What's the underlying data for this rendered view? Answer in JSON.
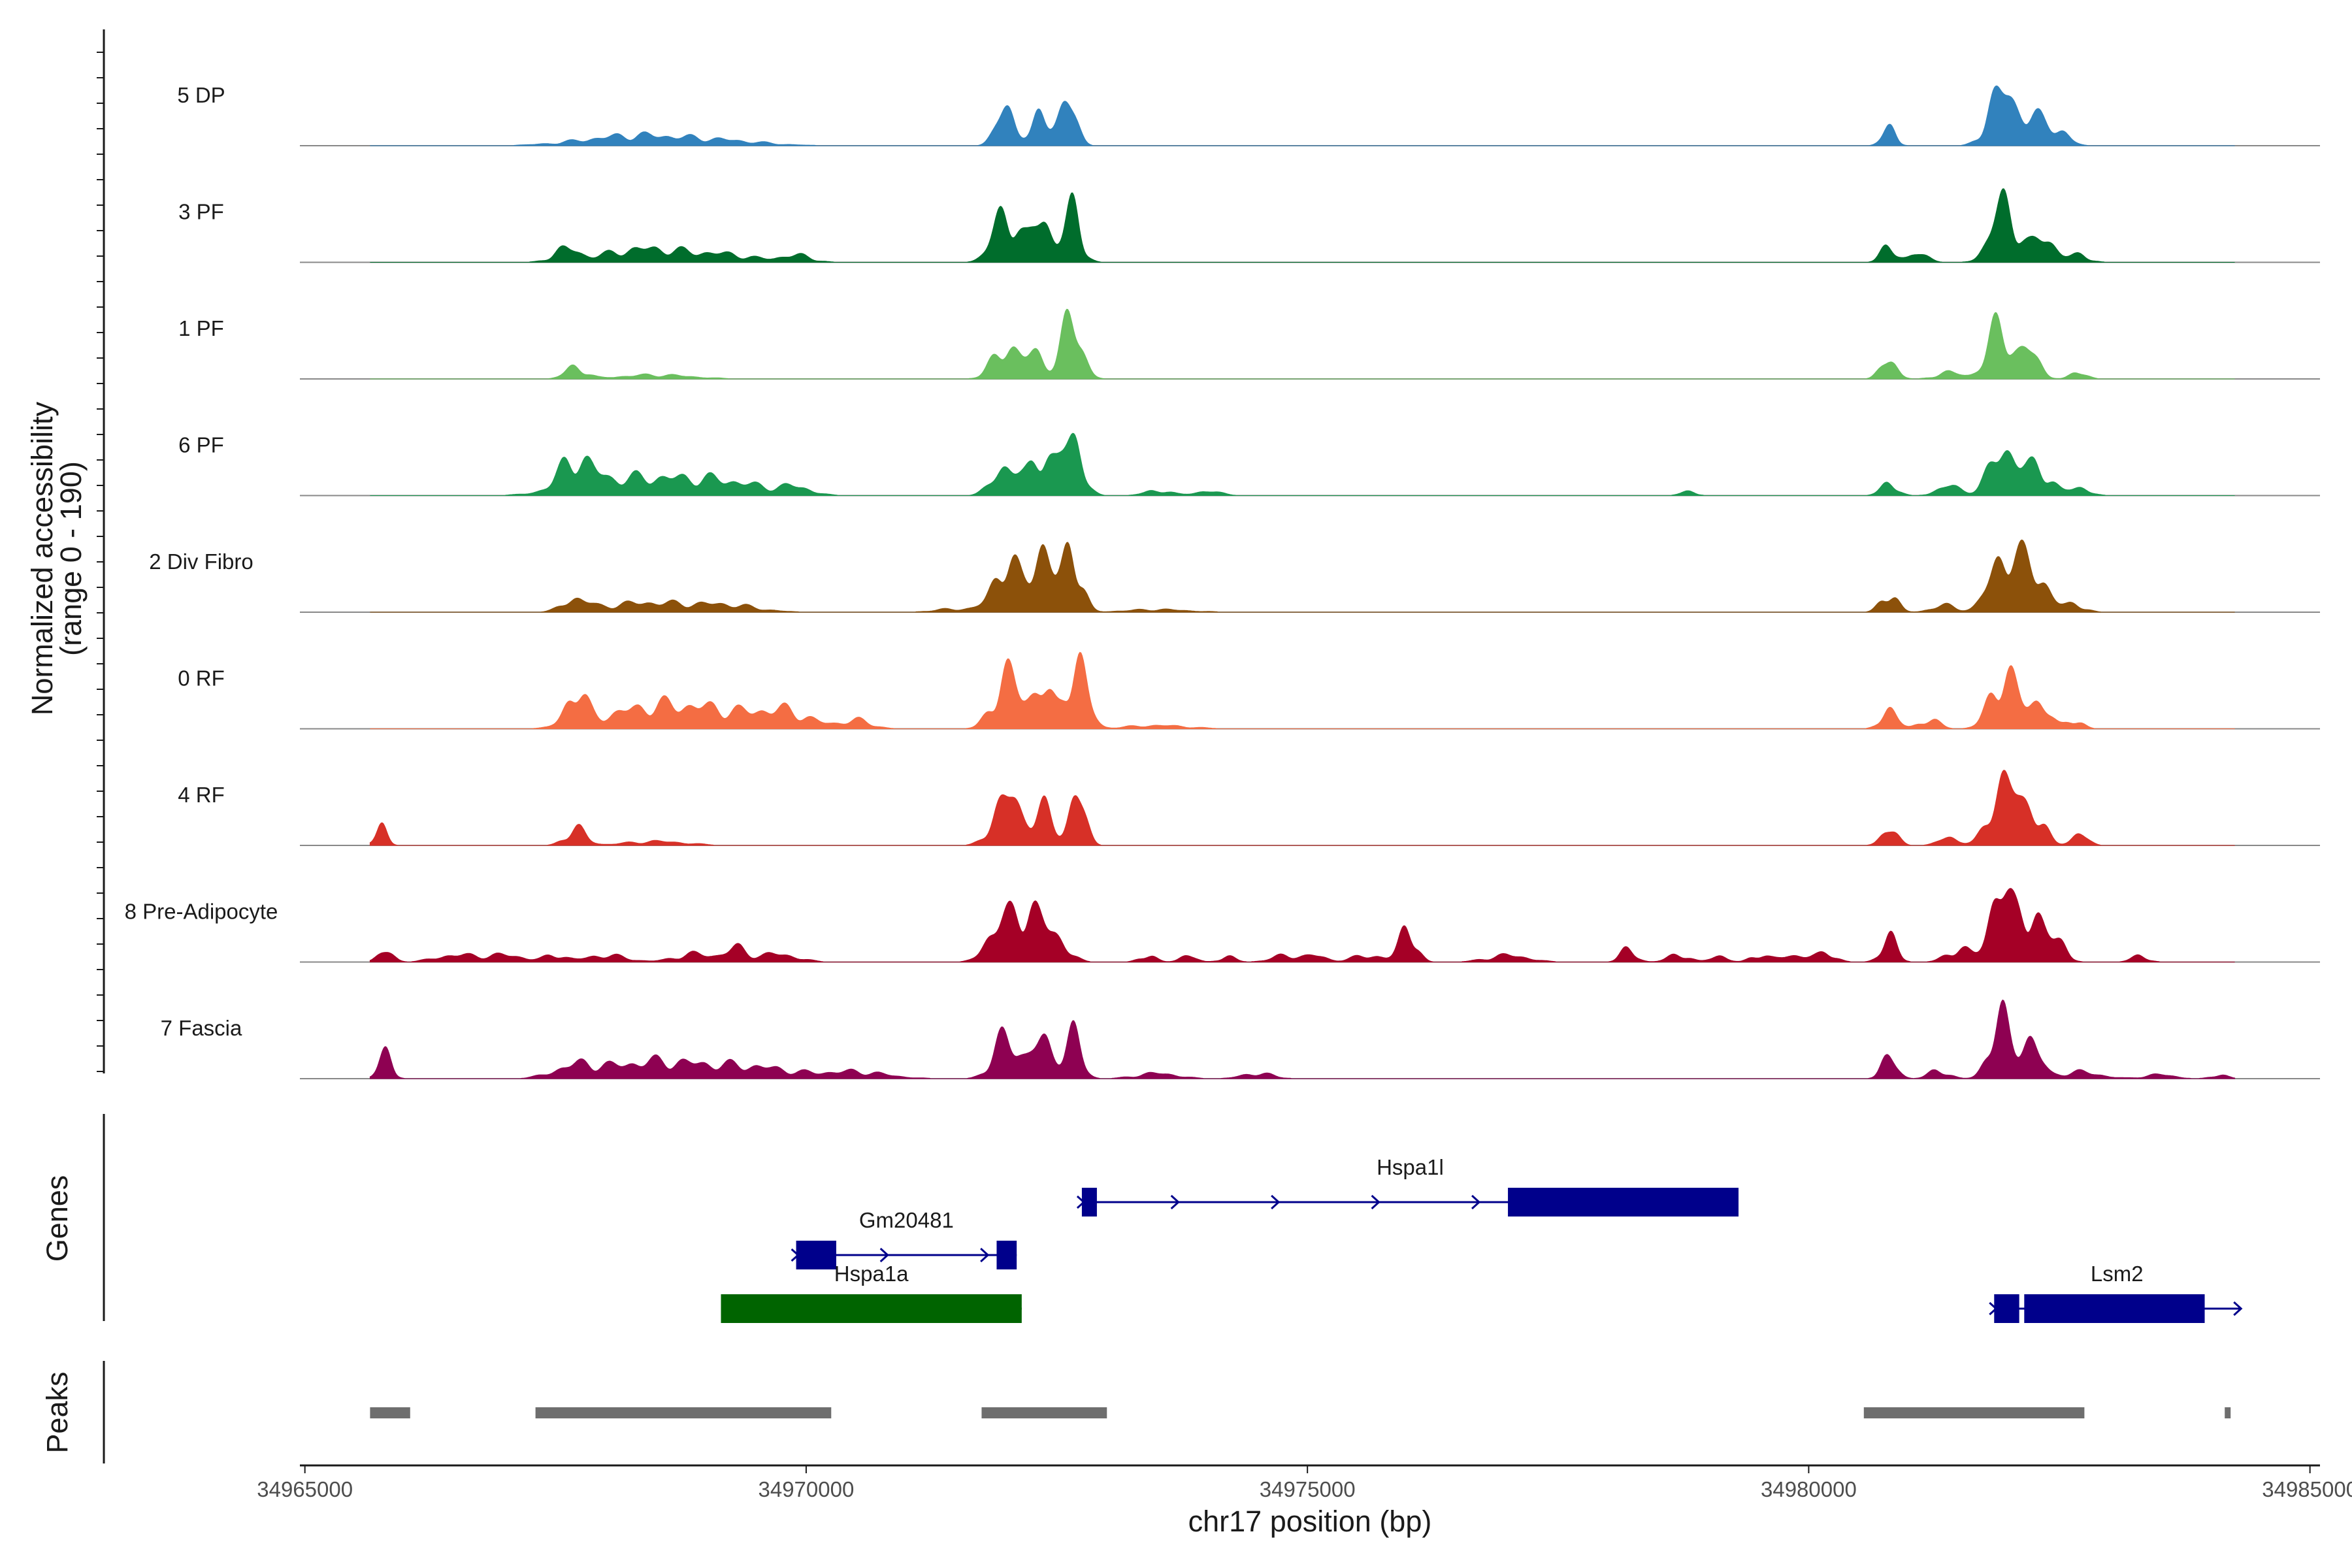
{
  "chart_data": {
    "type": "area",
    "title": "",
    "xlabel": "chr17 position (bp)",
    "ylabel": "Normalized accessibility",
    "ylabel_range": "(range 0 - 190)",
    "ylim": [
      0,
      190
    ],
    "xlim": [
      34964950,
      34985100
    ],
    "x_ticks": [
      34965000,
      34970000,
      34975000,
      34980000,
      34985000
    ],
    "x_tick_labels": [
      "34965000",
      "34970000",
      "34975000",
      "34980000",
      "34985000"
    ],
    "tracks": [
      {
        "name": "5 DP",
        "color": "#3182bd",
        "peaks": [
          [
            34968300,
            15,
            500
          ],
          [
            34969200,
            6,
            400
          ],
          [
            34972000,
            55,
            100
          ],
          [
            34972350,
            45,
            80
          ],
          [
            34972600,
            65,
            90
          ],
          [
            34980800,
            25,
            70
          ],
          [
            34981900,
            75,
            120
          ],
          [
            34982200,
            45,
            150
          ],
          [
            34982500,
            20,
            100
          ]
        ]
      },
      {
        "name": "3 PF",
        "color": "#006d2c",
        "peaks": [
          [
            34967600,
            18,
            120
          ],
          [
            34968400,
            20,
            400
          ],
          [
            34969200,
            10,
            300
          ],
          [
            34969900,
            10,
            150
          ],
          [
            34972000,
            75,
            130
          ],
          [
            34972350,
            65,
            90
          ],
          [
            34972650,
            75,
            90
          ],
          [
            34980800,
            22,
            80
          ],
          [
            34981100,
            12,
            100
          ],
          [
            34981950,
            85,
            130
          ],
          [
            34982350,
            35,
            120
          ],
          [
            34982700,
            10,
            100
          ]
        ]
      },
      {
        "name": "1 PF",
        "color": "#6abf5e",
        "peaks": [
          [
            34967700,
            18,
            100
          ],
          [
            34968500,
            6,
            350
          ],
          [
            34972000,
            50,
            130
          ],
          [
            34972300,
            35,
            90
          ],
          [
            34972650,
            90,
            100
          ],
          [
            34980800,
            30,
            80
          ],
          [
            34981400,
            10,
            120
          ],
          [
            34981900,
            75,
            120
          ],
          [
            34982200,
            40,
            100
          ],
          [
            34982700,
            10,
            80
          ]
        ]
      },
      {
        "name": "6 PF",
        "color": "#1a9850",
        "peaks": [
          [
            34967700,
            45,
            160
          ],
          [
            34968300,
            25,
            500
          ],
          [
            34969200,
            18,
            400
          ],
          [
            34969900,
            10,
            150
          ],
          [
            34972000,
            45,
            130
          ],
          [
            34972350,
            65,
            100
          ],
          [
            34972650,
            92,
            100
          ],
          [
            34973500,
            8,
            120
          ],
          [
            34974000,
            6,
            150
          ],
          [
            34978800,
            6,
            80
          ],
          [
            34980800,
            20,
            80
          ],
          [
            34981400,
            14,
            120
          ],
          [
            34981950,
            70,
            140
          ],
          [
            34982300,
            40,
            120
          ],
          [
            34982700,
            12,
            100
          ]
        ]
      },
      {
        "name": "2 Div Fibro",
        "color": "#8c510a",
        "peaks": [
          [
            34967700,
            18,
            120
          ],
          [
            34968400,
            14,
            400
          ],
          [
            34969200,
            10,
            300
          ],
          [
            34971500,
            5,
            200
          ],
          [
            34972000,
            75,
            130
          ],
          [
            34972350,
            95,
            100
          ],
          [
            34972650,
            98,
            90
          ],
          [
            34973500,
            4,
            300
          ],
          [
            34980800,
            30,
            80
          ],
          [
            34981350,
            10,
            120
          ],
          [
            34981950,
            85,
            140
          ],
          [
            34982250,
            60,
            130
          ],
          [
            34982650,
            12,
            100
          ]
        ]
      },
      {
        "name": "0 RF",
        "color": "#f46d43",
        "peaks": [
          [
            34967700,
            50,
            100
          ],
          [
            34968300,
            20,
            400
          ],
          [
            34969000,
            28,
            500
          ],
          [
            34969800,
            20,
            250
          ],
          [
            34970500,
            12,
            150
          ],
          [
            34972000,
            80,
            130
          ],
          [
            34972350,
            65,
            100
          ],
          [
            34972700,
            105,
            100
          ],
          [
            34973500,
            5,
            300
          ],
          [
            34980800,
            30,
            80
          ],
          [
            34981200,
            14,
            100
          ],
          [
            34981950,
            85,
            130
          ],
          [
            34982300,
            40,
            100
          ],
          [
            34982650,
            14,
            80
          ]
        ]
      },
      {
        "name": "4 RF",
        "color": "#d73027",
        "peaks": [
          [
            34965750,
            30,
            60
          ],
          [
            34967700,
            25,
            100
          ],
          [
            34968500,
            6,
            300
          ],
          [
            34972000,
            75,
            130
          ],
          [
            34972350,
            55,
            100
          ],
          [
            34972700,
            80,
            80
          ],
          [
            34980800,
            25,
            80
          ],
          [
            34981400,
            12,
            100
          ],
          [
            34981950,
            100,
            130
          ],
          [
            34982250,
            50,
            100
          ],
          [
            34982700,
            18,
            80
          ]
        ]
      },
      {
        "name": "8 Pre-Adipocyte",
        "color": "#a50026",
        "peaks": [
          [
            34965800,
            15,
            80
          ],
          [
            34966500,
            10,
            200
          ],
          [
            34967000,
            10,
            200
          ],
          [
            34967500,
            10,
            100
          ],
          [
            34968000,
            10,
            200
          ],
          [
            34968900,
            12,
            200
          ],
          [
            34969300,
            18,
            100
          ],
          [
            34969700,
            12,
            200
          ],
          [
            34971900,
            45,
            120
          ],
          [
            34972200,
            80,
            150
          ],
          [
            34972500,
            30,
            120
          ],
          [
            34973400,
            10,
            80
          ],
          [
            34973800,
            10,
            80
          ],
          [
            34974200,
            8,
            80
          ],
          [
            34974800,
            10,
            150
          ],
          [
            34975100,
            8,
            100
          ],
          [
            34975600,
            10,
            150
          ],
          [
            34976000,
            55,
            80
          ],
          [
            34977000,
            10,
            200
          ],
          [
            34978200,
            18,
            80
          ],
          [
            34978700,
            12,
            100
          ],
          [
            34979100,
            10,
            80
          ],
          [
            34979500,
            10,
            80
          ],
          [
            34979900,
            10,
            200
          ],
          [
            34980200,
            10,
            80
          ],
          [
            34980800,
            35,
            80
          ],
          [
            34981500,
            20,
            120
          ],
          [
            34981900,
            110,
            100
          ],
          [
            34982200,
            80,
            130
          ],
          [
            34982500,
            30,
            80
          ],
          [
            34983300,
            10,
            80
          ]
        ]
      },
      {
        "name": "7 Fascia",
        "color": "#8e0152",
        "peaks": [
          [
            34965800,
            35,
            70
          ],
          [
            34967700,
            15,
            200
          ],
          [
            34968500,
            25,
            500
          ],
          [
            34969500,
            15,
            400
          ],
          [
            34970500,
            10,
            300
          ],
          [
            34972000,
            60,
            130
          ],
          [
            34972350,
            55,
            100
          ],
          [
            34972650,
            65,
            90
          ],
          [
            34973500,
            8,
            200
          ],
          [
            34974500,
            8,
            150
          ],
          [
            34980800,
            30,
            80
          ],
          [
            34981300,
            12,
            100
          ],
          [
            34981900,
            90,
            100
          ],
          [
            34982200,
            60,
            100
          ],
          [
            34982700,
            10,
            200
          ],
          [
            34983500,
            6,
            150
          ],
          [
            34984100,
            6,
            80
          ]
        ]
      }
    ],
    "genes": [
      {
        "name": "Hspa1l",
        "start": 34972750,
        "end": 34979300,
        "strand": "+",
        "color": "#00008b",
        "exons": [
          [
            34972750,
            34972900
          ],
          [
            34977000,
            34979300
          ]
        ],
        "arrow_marks": [
          34973700,
          34974700,
          34975700,
          34976700
        ]
      },
      {
        "name": "Gm20481",
        "start": 34969900,
        "end": 34972100,
        "strand": "+",
        "color": "#00008b",
        "exons": [
          [
            34969900,
            34970300
          ],
          [
            34971900,
            34972100
          ]
        ],
        "arrow_marks": [
          34970800,
          34971800
        ]
      },
      {
        "name": "Hspa1a",
        "start": 34969150,
        "end": 34972150,
        "strand": "+",
        "color": "#006400",
        "exons": [
          [
            34969150,
            34972150
          ]
        ],
        "arrow_marks": []
      },
      {
        "name": "Lsm2",
        "start": 34981850,
        "end": 34984300,
        "strand": "+",
        "color": "#00008b",
        "exons": [
          [
            34981850,
            34982100
          ],
          [
            34982150,
            34983950
          ]
        ],
        "arrow_marks": [
          34984300
        ]
      }
    ],
    "peaks_track": [
      [
        34965650,
        34966050
      ],
      [
        34967300,
        34970250
      ],
      [
        34971750,
        34973000
      ],
      [
        34980550,
        34982750
      ],
      [
        34984150,
        34984200
      ]
    ],
    "panel_labels": {
      "genes": "Genes",
      "peaks": "Peaks"
    }
  }
}
